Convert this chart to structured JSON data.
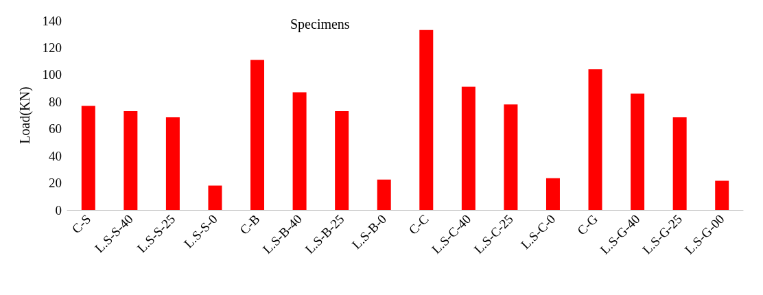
{
  "chart_data": {
    "type": "bar",
    "title": "Specimens",
    "ylabel": "Load(KN)",
    "categories": [
      "C-S",
      "L.S-S-40",
      "L.S-S-25",
      "L.S-S-0",
      "C-B",
      "L.S-B-40",
      "L.S-B-25",
      "L.S-B-0",
      "C-C",
      "L.S-C-40",
      "L.S-C-25",
      "L.S-C-0",
      "C-G",
      "L.S-G-40",
      "L.S-G-25",
      "L.S-G-00"
    ],
    "values": [
      77,
      73,
      68.5,
      18,
      111,
      87,
      73,
      22.5,
      133,
      91,
      78,
      23.5,
      104,
      86,
      68.5,
      21.5
    ],
    "color": "#ff0000",
    "ylim": [
      0,
      140
    ],
    "yticks": [
      0,
      20,
      40,
      60,
      80,
      100,
      120,
      140
    ],
    "grid": false
  }
}
